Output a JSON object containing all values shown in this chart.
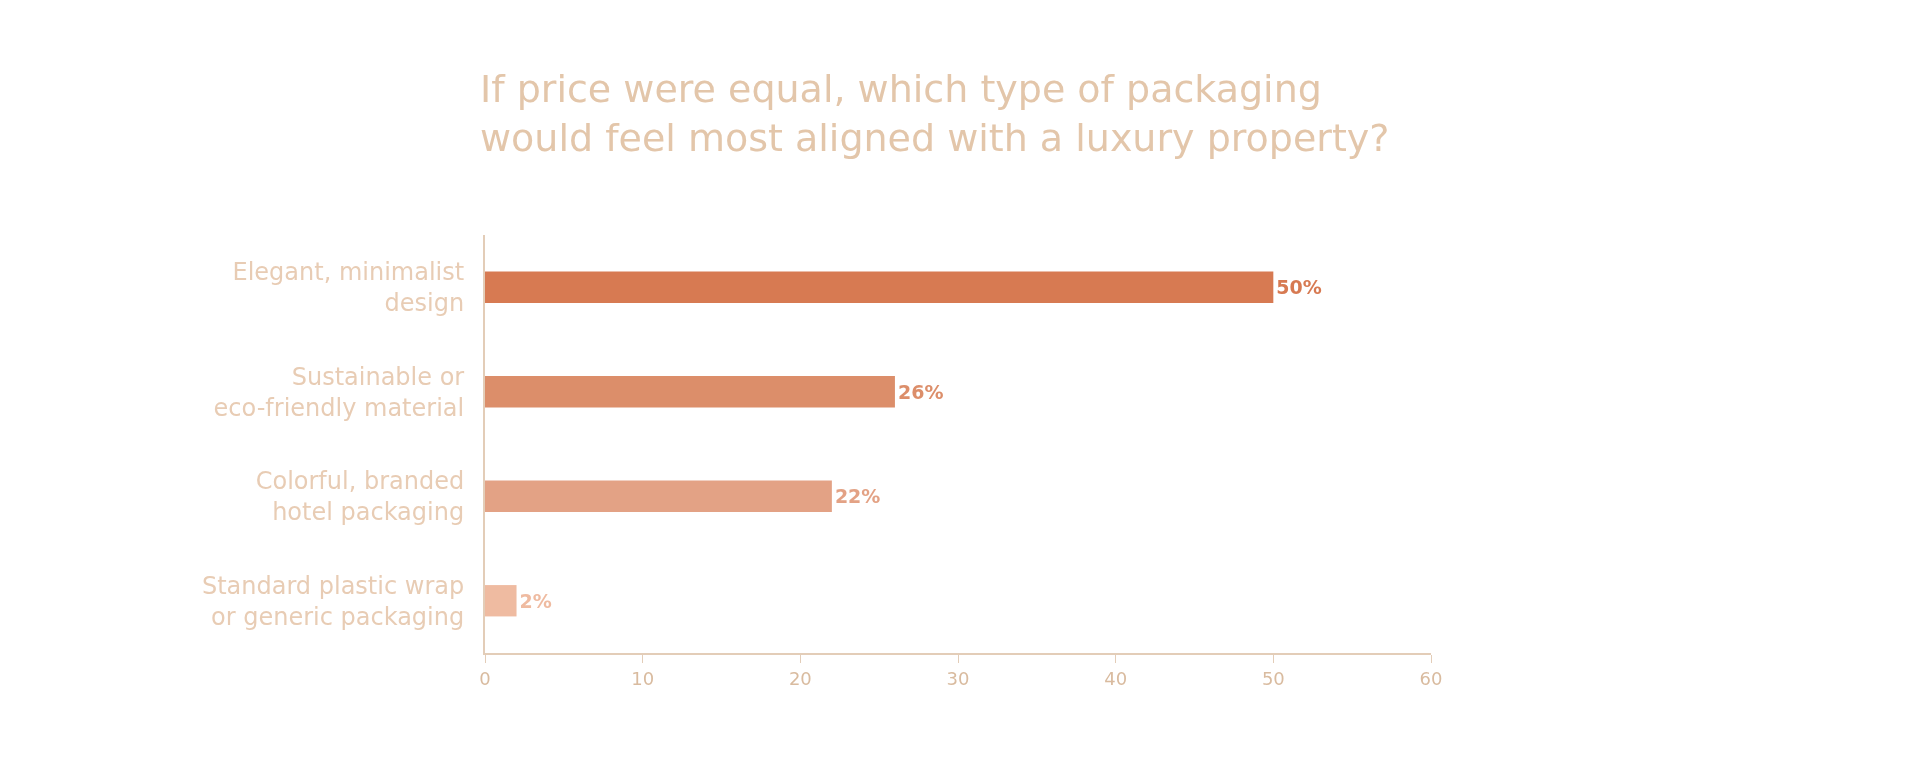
{
  "chart_data": {
    "type": "bar",
    "orientation": "horizontal",
    "title": "If price were equal, which type of packaging\nwould feel most aligned with a luxury property?",
    "categories": [
      "Elegant, minimalist\ndesign",
      "Sustainable or\neco-friendly material",
      "Colorful, branded\nhotel packaging",
      "Standard plastic wrap\nor generic packaging"
    ],
    "values": [
      50,
      26,
      22,
      2
    ],
    "colors": [
      "#d77a52",
      "#dc8e6a",
      "#e3a285",
      "#efbba1"
    ],
    "value_labels": [
      "50%",
      "26%",
      "22%",
      "2%"
    ],
    "xlim": [
      0,
      60
    ],
    "xticks": [
      0,
      10,
      20,
      30,
      40,
      50,
      60
    ]
  }
}
